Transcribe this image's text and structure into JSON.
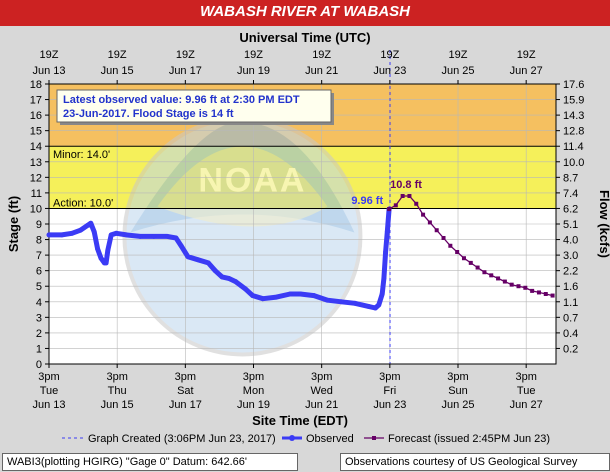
{
  "title": "WABASH RIVER AT WABASH",
  "colors": {
    "title_bg": "#cc2222",
    "observed": "#3b3bf5",
    "forecast": "#660066",
    "band_major": "#f5c060",
    "band_minor": "#f5f05a",
    "band_action": "#ffffcc",
    "band_normal": "#ffffff"
  },
  "icons": [
    "noaa-logo-watermark"
  ],
  "labels": {
    "top_axis_title": "Universal Time (UTC)",
    "bottom_axis_title": "Site Time (EDT)",
    "left_axis_title": "Stage (ft)",
    "right_axis_title": "Flow (kcfs)",
    "minor": "Minor: 14.0'",
    "action": "Action: 10.0'",
    "latest_line1": "Latest observed value: 9.96 ft at 2:30 PM EDT",
    "latest_line2": "23-Jun-2017.  Flood Stage is 14 ft",
    "obs_label": "9.96 ft",
    "fcst_label": "10.8 ft"
  },
  "legend": {
    "created": "Graph Created (3:06PM Jun 23, 2017)",
    "observed": "Observed",
    "forecast": "Forecast (issued 2:45PM Jun 23)"
  },
  "footer": {
    "left": "WABI3(plotting HGIRG) \"Gage 0\" Datum: 642.66'",
    "right": "Observations courtesy of US Geological Survey"
  },
  "chart_data": {
    "type": "line",
    "title": "WABASH RIVER AT WABASH",
    "xlabel": "Site Time (EDT)",
    "ylabel": "Stage (ft)",
    "y2label": "Flow (kcfs)",
    "top_xlabel": "Universal Time (UTC)",
    "xlim_days": [
      13.625,
      28.5
    ],
    "ylim": [
      0,
      18
    ],
    "y_ticks": [
      0,
      1,
      2,
      3,
      4,
      5,
      6,
      7,
      8,
      9,
      10,
      11,
      12,
      13,
      14,
      15,
      16,
      17,
      18
    ],
    "y2_ticks": [
      {
        "stage": 1,
        "label": "0.2"
      },
      {
        "stage": 2,
        "label": "0.4"
      },
      {
        "stage": 3,
        "label": "0.7"
      },
      {
        "stage": 4,
        "label": "1.1"
      },
      {
        "stage": 5,
        "label": "1.6"
      },
      {
        "stage": 6,
        "label": "2.2"
      },
      {
        "stage": 7,
        "label": "3.0"
      },
      {
        "stage": 8,
        "label": "4.0"
      },
      {
        "stage": 9,
        "label": "5.1"
      },
      {
        "stage": 10,
        "label": "6.2"
      },
      {
        "stage": 11,
        "label": "7.4"
      },
      {
        "stage": 12,
        "label": "8.7"
      },
      {
        "stage": 13,
        "label": "10.0"
      },
      {
        "stage": 14,
        "label": "11.4"
      },
      {
        "stage": 15,
        "label": "12.8"
      },
      {
        "stage": 16,
        "label": "14.3"
      },
      {
        "stage": 17,
        "label": "15.9"
      },
      {
        "stage": 18,
        "label": "17.6"
      }
    ],
    "bottom_ticks": [
      {
        "day": 13.625,
        "l1": "3pm",
        "l2": "Tue",
        "l3": "Jun 13"
      },
      {
        "day": 15.625,
        "l1": "3pm",
        "l2": "Thu",
        "l3": "Jun 15"
      },
      {
        "day": 17.625,
        "l1": "3pm",
        "l2": "Sat",
        "l3": "Jun 17"
      },
      {
        "day": 19.625,
        "l1": "3pm",
        "l2": "Mon",
        "l3": "Jun 19"
      },
      {
        "day": 21.625,
        "l1": "3pm",
        "l2": "Wed",
        "l3": "Jun 21"
      },
      {
        "day": 23.625,
        "l1": "3pm",
        "l2": "Fri",
        "l3": "Jun 23"
      },
      {
        "day": 25.625,
        "l1": "3pm",
        "l2": "Sun",
        "l3": "Jun 25"
      },
      {
        "day": 27.625,
        "l1": "3pm",
        "l2": "Tue",
        "l3": "Jun 27"
      }
    ],
    "top_ticks": [
      {
        "day": 13.625,
        "l1": "19Z",
        "l2": "Jun 13"
      },
      {
        "day": 15.625,
        "l1": "19Z",
        "l2": "Jun 15"
      },
      {
        "day": 17.625,
        "l1": "19Z",
        "l2": "Jun 17"
      },
      {
        "day": 19.625,
        "l1": "19Z",
        "l2": "Jun 19"
      },
      {
        "day": 21.625,
        "l1": "19Z",
        "l2": "Jun 21"
      },
      {
        "day": 23.625,
        "l1": "19Z",
        "l2": "Jun 23"
      },
      {
        "day": 25.625,
        "l1": "19Z",
        "l2": "Jun 25"
      },
      {
        "day": 27.625,
        "l1": "19Z",
        "l2": "Jun 27"
      }
    ],
    "bands": [
      {
        "name": "major",
        "from": 14,
        "to": 18
      },
      {
        "name": "minor",
        "from": 10,
        "to": 14
      },
      {
        "name": "action",
        "from": 9.96,
        "to": 10
      },
      {
        "name": "normal",
        "from": 0,
        "to": 10
      }
    ],
    "thresholds": {
      "action": 10,
      "minor": 14,
      "flood": 14
    },
    "graph_created_day": 23.63,
    "observed": {
      "name": "Observed",
      "points": [
        [
          13.625,
          8.3
        ],
        [
          14.0,
          8.3
        ],
        [
          14.3,
          8.4
        ],
        [
          14.55,
          8.6
        ],
        [
          14.75,
          8.9
        ],
        [
          14.85,
          9.05
        ],
        [
          14.95,
          8.5
        ],
        [
          15.05,
          7.4
        ],
        [
          15.15,
          6.8
        ],
        [
          15.25,
          6.5
        ],
        [
          15.3,
          6.5
        ],
        [
          15.35,
          7.3
        ],
        [
          15.45,
          8.3
        ],
        [
          15.6,
          8.4
        ],
        [
          15.9,
          8.3
        ],
        [
          16.3,
          8.2
        ],
        [
          16.7,
          8.2
        ],
        [
          17.1,
          8.2
        ],
        [
          17.35,
          8.1
        ],
        [
          17.5,
          7.6
        ],
        [
          17.7,
          6.9
        ],
        [
          18.0,
          6.7
        ],
        [
          18.3,
          6.5
        ],
        [
          18.5,
          6.0
        ],
        [
          18.7,
          5.6
        ],
        [
          18.9,
          5.5
        ],
        [
          19.1,
          5.3
        ],
        [
          19.4,
          4.8
        ],
        [
          19.6,
          4.4
        ],
        [
          19.9,
          4.2
        ],
        [
          20.3,
          4.3
        ],
        [
          20.7,
          4.5
        ],
        [
          21.0,
          4.5
        ],
        [
          21.4,
          4.4
        ],
        [
          21.8,
          4.1
        ],
        [
          22.2,
          4.0
        ],
        [
          22.6,
          3.9
        ],
        [
          23.0,
          3.7
        ],
        [
          23.2,
          3.6
        ],
        [
          23.3,
          3.8
        ],
        [
          23.4,
          4.5
        ],
        [
          23.45,
          5.5
        ],
        [
          23.5,
          7.2
        ],
        [
          23.55,
          8.5
        ],
        [
          23.604,
          9.96
        ]
      ]
    },
    "forecast": {
      "name": "Forecast",
      "points": [
        [
          23.604,
          9.96
        ],
        [
          23.8,
          10.2
        ],
        [
          24.0,
          10.8
        ],
        [
          24.2,
          10.8
        ],
        [
          24.4,
          10.3
        ],
        [
          24.6,
          9.6
        ],
        [
          24.8,
          9.1
        ],
        [
          25.0,
          8.6
        ],
        [
          25.2,
          8.1
        ],
        [
          25.4,
          7.6
        ],
        [
          25.6,
          7.2
        ],
        [
          25.8,
          6.8
        ],
        [
          26.0,
          6.5
        ],
        [
          26.2,
          6.2
        ],
        [
          26.4,
          5.9
        ],
        [
          26.6,
          5.7
        ],
        [
          26.8,
          5.5
        ],
        [
          27.0,
          5.3
        ],
        [
          27.2,
          5.1
        ],
        [
          27.4,
          5.0
        ],
        [
          27.6,
          4.9
        ],
        [
          27.8,
          4.7
        ],
        [
          28.0,
          4.6
        ],
        [
          28.2,
          4.5
        ],
        [
          28.4,
          4.4
        ]
      ]
    },
    "annotations": [
      {
        "text": "9.96 ft",
        "day": 23.604,
        "stage": 9.96
      },
      {
        "text": "10.8 ft",
        "day": 24.1,
        "stage": 10.8
      }
    ]
  }
}
